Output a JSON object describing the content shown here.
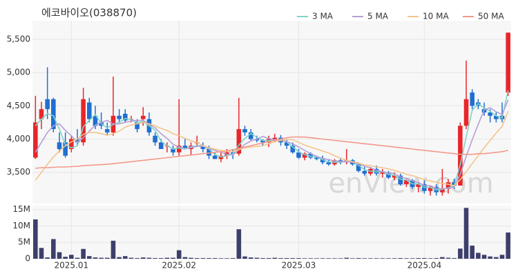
{
  "chart_data": [
    {
      "type": "candlestick",
      "title": "에코바이오(038870)",
      "watermark": "enView.com",
      "categories": [
        null,
        null,
        null,
        null,
        null,
        null,
        "2025.01",
        null,
        null,
        null,
        null,
        null,
        null,
        null,
        null,
        null,
        null,
        null,
        null,
        null,
        null,
        null,
        null,
        null,
        "2025.02",
        null,
        null,
        null,
        null,
        null,
        null,
        null,
        null,
        null,
        null,
        null,
        null,
        null,
        null,
        null,
        null,
        null,
        null,
        null,
        "2025.03",
        null,
        null,
        null,
        null,
        null,
        null,
        null,
        null,
        null,
        null,
        null,
        null,
        null,
        null,
        null,
        null,
        null,
        null,
        null,
        null,
        "2025.04",
        null,
        null,
        null,
        null,
        null,
        null,
        null,
        null,
        null,
        null,
        null,
        null,
        null,
        null
      ],
      "open": [
        3720,
        4300,
        4600,
        4600,
        3950,
        3950,
        3850,
        4000,
        3950,
        4550,
        4350,
        4250,
        4150,
        4100,
        4350,
        4380,
        4300,
        4250,
        4300,
        4300,
        4050,
        3950,
        3900,
        3850,
        3800,
        3900,
        3850,
        3950,
        3900,
        3850,
        3750,
        3700,
        3750,
        3800,
        3780,
        4150,
        4100,
        4000,
        3980,
        3950,
        4000,
        4020,
        3950,
        3900,
        3800,
        3720,
        3780,
        3720,
        3700,
        3650,
        3620,
        3680,
        3650,
        3680,
        3620,
        3520,
        3480,
        3550,
        3480,
        3500,
        3420,
        3450,
        3320,
        3380,
        3280,
        3320,
        3220,
        3280,
        3200,
        3250,
        3350,
        3300,
        4200,
        4700,
        4550,
        4450,
        4400,
        4350,
        4350,
        4700
      ],
      "high": [
        4650,
        4560,
        5080,
        4620,
        4100,
        4100,
        4050,
        4150,
        4770,
        4620,
        4500,
        4400,
        4250,
        4940,
        4450,
        4450,
        4350,
        4300,
        4480,
        4400,
        4100,
        4000,
        3950,
        3900,
        4600,
        4000,
        3950,
        4050,
        3950,
        3900,
        3800,
        3800,
        3850,
        3850,
        4620,
        4200,
        4150,
        4050,
        4000,
        4050,
        4080,
        4060,
        4000,
        3950,
        3850,
        3800,
        3800,
        3750,
        3750,
        3700,
        3700,
        3720,
        3850,
        3700,
        3650,
        3580,
        3580,
        3600,
        3550,
        3520,
        3500,
        3480,
        3400,
        3400,
        3350,
        3380,
        3300,
        3320,
        3550,
        3400,
        3400,
        4250,
        5180,
        4750,
        4600,
        4550,
        4450,
        4400,
        4550,
        5600
      ],
      "low": [
        3700,
        4150,
        4300,
        4100,
        3800,
        3720,
        3800,
        3900,
        3900,
        4250,
        4150,
        4150,
        4050,
        4050,
        4250,
        4250,
        4250,
        4100,
        4200,
        4050,
        3900,
        3850,
        3800,
        3750,
        3750,
        3850,
        3750,
        3900,
        3800,
        3700,
        3700,
        3650,
        3700,
        3700,
        3750,
        4050,
        3980,
        3950,
        3900,
        3880,
        3950,
        3900,
        3850,
        3780,
        3700,
        3680,
        3700,
        3680,
        3620,
        3600,
        3600,
        3620,
        3620,
        3600,
        3500,
        3450,
        3450,
        3450,
        3420,
        3400,
        3380,
        3300,
        3280,
        3250,
        3200,
        3180,
        3150,
        3150,
        3150,
        3180,
        3250,
        3300,
        4150,
        4450,
        4450,
        4350,
        4250,
        4250,
        4250,
        4650
      ],
      "close": [
        4250,
        4450,
        4450,
        4150,
        3850,
        3750,
        4000,
        3950,
        4600,
        4300,
        4200,
        4200,
        4100,
        4350,
        4300,
        4280,
        4300,
        4150,
        4350,
        4100,
        3950,
        3850,
        3900,
        3800,
        3900,
        3850,
        3900,
        3950,
        3850,
        3750,
        3700,
        3750,
        3800,
        3780,
        4150,
        4100,
        4000,
        3980,
        3950,
        4000,
        4020,
        3950,
        3900,
        3800,
        3720,
        3780,
        3720,
        3700,
        3650,
        3620,
        3680,
        3650,
        3680,
        3620,
        3520,
        3480,
        3550,
        3480,
        3500,
        3420,
        3450,
        3320,
        3380,
        3280,
        3320,
        3220,
        3280,
        3200,
        3250,
        3350,
        3300,
        4200,
        4600,
        4500,
        4500,
        4400,
        4350,
        4300,
        4300,
        5600
      ],
      "up_color": "#e8262a",
      "down_color": "#1f6fd1",
      "series": [
        {
          "name": "3 MA",
          "color": "#7fd3c9",
          "values": [
            4200,
            4300,
            4383,
            4350,
            4150,
            3917,
            3867,
            3900,
            4183,
            4283,
            4367,
            4233,
            4167,
            4217,
            4250,
            4310,
            4293,
            4243,
            4267,
            4200,
            4133,
            3967,
            3900,
            3850,
            3867,
            3850,
            3883,
            3900,
            3900,
            3850,
            3767,
            3733,
            3750,
            3777,
            3910,
            4010,
            4083,
            4027,
            3977,
            3977,
            3990,
            3990,
            3957,
            3883,
            3807,
            3767,
            3740,
            3733,
            3690,
            3657,
            3650,
            3650,
            3670,
            3650,
            3607,
            3540,
            3517,
            3503,
            3510,
            3467,
            3457,
            3397,
            3383,
            3327,
            3327,
            3273,
            3273,
            3233,
            3243,
            3267,
            3300,
            3617,
            4033,
            4433,
            4533,
            4467,
            4417,
            4350,
            4317,
            4733
          ]
        },
        {
          "name": "5 MA",
          "color": "#b49fd6",
          "values": [
            3800,
            3950,
            4100,
            4200,
            4230,
            4130,
            4050,
            3950,
            4020,
            4120,
            4210,
            4250,
            4280,
            4230,
            4230,
            4250,
            4270,
            4280,
            4280,
            4220,
            4170,
            4080,
            4010,
            3920,
            3880,
            3860,
            3870,
            3890,
            3890,
            3860,
            3830,
            3800,
            3770,
            3760,
            3840,
            3920,
            3970,
            4000,
            4040,
            4010,
            3990,
            3980,
            3960,
            3930,
            3880,
            3830,
            3780,
            3740,
            3710,
            3690,
            3670,
            3660,
            3660,
            3650,
            3630,
            3590,
            3570,
            3530,
            3510,
            3490,
            3480,
            3430,
            3410,
            3370,
            3350,
            3300,
            3300,
            3260,
            3250,
            3260,
            3280,
            3470,
            3740,
            3990,
            4220,
            4440,
            4470,
            4410,
            4370,
            4590
          ]
        },
        {
          "name": "10 MA",
          "color": "#f4c48a",
          "values": [
            3380,
            3500,
            3620,
            3730,
            3820,
            3900,
            3960,
            4000,
            4070,
            4100,
            4100,
            4080,
            4060,
            4080,
            4120,
            4180,
            4210,
            4230,
            4250,
            4230,
            4200,
            4160,
            4130,
            4080,
            4050,
            4010,
            3970,
            3950,
            3900,
            3870,
            3850,
            3830,
            3820,
            3810,
            3840,
            3870,
            3880,
            3890,
            3900,
            3930,
            3960,
            3980,
            3990,
            3990,
            3950,
            3910,
            3880,
            3850,
            3820,
            3790,
            3750,
            3710,
            3680,
            3660,
            3640,
            3610,
            3600,
            3580,
            3570,
            3550,
            3530,
            3500,
            3470,
            3450,
            3420,
            3390,
            3370,
            3350,
            3330,
            3320,
            3300,
            3390,
            3510,
            3630,
            3750,
            3870,
            3980,
            4090,
            4190,
            4420
          ]
        },
        {
          "name": "50 MA",
          "color": "#f4998a",
          "values": [
            3560,
            3570,
            3570,
            3575,
            3580,
            3580,
            3585,
            3590,
            3600,
            3605,
            3610,
            3615,
            3620,
            3630,
            3640,
            3650,
            3660,
            3670,
            3680,
            3690,
            3700,
            3710,
            3720,
            3730,
            3740,
            3750,
            3760,
            3770,
            3780,
            3790,
            3800,
            3810,
            3820,
            3840,
            3860,
            3880,
            3900,
            3920,
            3940,
            3960,
            3980,
            4000,
            4020,
            4030,
            4030,
            4030,
            4020,
            4010,
            4000,
            3990,
            3980,
            3970,
            3960,
            3950,
            3940,
            3930,
            3920,
            3910,
            3900,
            3890,
            3880,
            3870,
            3860,
            3850,
            3840,
            3830,
            3820,
            3810,
            3800,
            3790,
            3780,
            3770,
            3770,
            3770,
            3780,
            3780,
            3790,
            3800,
            3810,
            3830
          ]
        }
      ],
      "ylim": [
        3030,
        5780
      ],
      "yticks": [
        {
          "value": 3500,
          "label": "3,500"
        },
        {
          "value": 4000,
          "label": "4,000"
        },
        {
          "value": 4500,
          "label": "4,500"
        },
        {
          "value": 5000,
          "label": "5,000"
        },
        {
          "value": 5500,
          "label": "5,500"
        }
      ],
      "grid": true
    },
    {
      "type": "bar",
      "color": "#3d3f6b",
      "values": [
        12000000,
        3300000,
        400000,
        6000000,
        2000000,
        600000,
        1200000,
        300000,
        3000000,
        800000,
        400000,
        300000,
        300000,
        5500000,
        500000,
        800000,
        300000,
        200000,
        400000,
        300000,
        200000,
        200000,
        300000,
        300000,
        2600000,
        500000,
        300000,
        200000,
        200000,
        200000,
        200000,
        150000,
        150000,
        200000,
        9000000,
        700000,
        400000,
        300000,
        200000,
        200000,
        300000,
        200000,
        200000,
        200000,
        200000,
        150000,
        150000,
        150000,
        150000,
        150000,
        150000,
        150000,
        300000,
        150000,
        200000,
        150000,
        150000,
        150000,
        150000,
        150000,
        150000,
        200000,
        150000,
        150000,
        200000,
        200000,
        150000,
        200000,
        500000,
        300000,
        200000,
        3100000,
        15500000,
        4000000,
        1800000,
        1200000,
        700000,
        500000,
        1200000,
        8000000
      ],
      "ylim": [
        0,
        16200000
      ],
      "yticks": [
        0,
        {
          "value": 5000000,
          "label": "5M"
        },
        {
          "value": 10000000,
          "label": "10M"
        },
        {
          "value": 15000000,
          "label": "15M"
        }
      ],
      "grid": true
    }
  ]
}
